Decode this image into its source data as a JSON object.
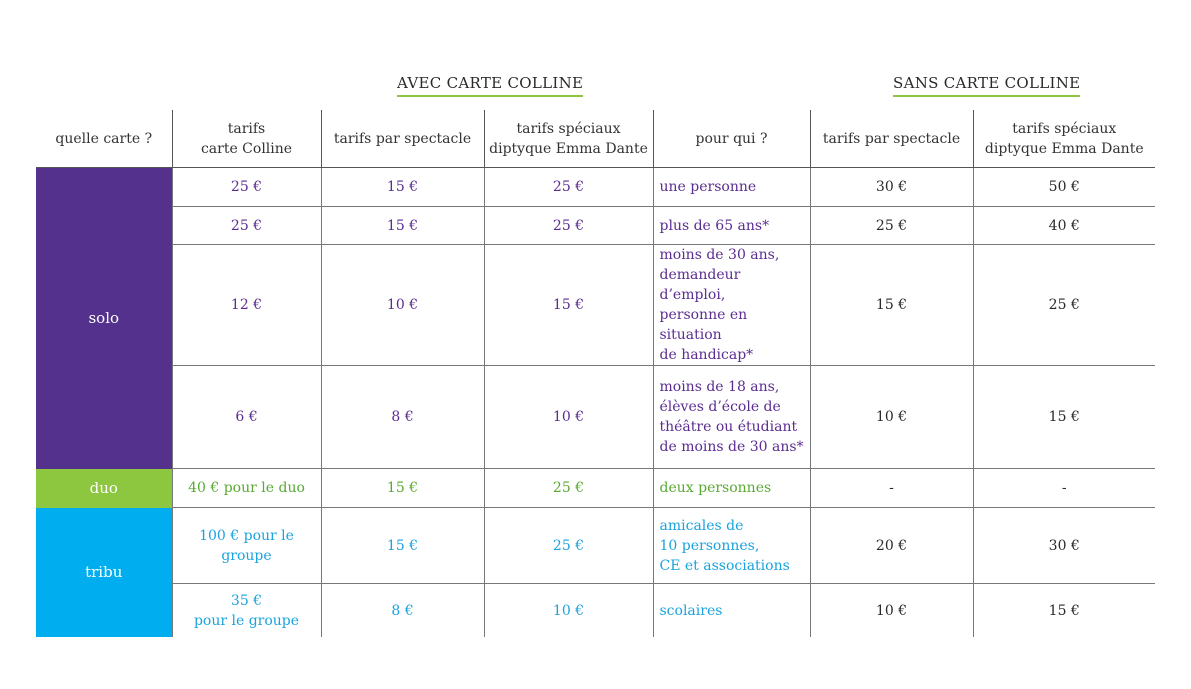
{
  "headers": {
    "avec": "AVEC CARTE COLLINE",
    "sans": "SANS CARTE COLLINE"
  },
  "columns": {
    "c0": "quelle carte ?",
    "c1": "tarifs\ncarte Colline",
    "c2": "tarifs par spectacle",
    "c3": "tarifs spéciaux\ndiptyque Emma Dante",
    "c4": "pour qui ?",
    "c5": "tarifs par spectacle",
    "c6": "tarifs spéciaux\ndiptyque Emma Dante"
  },
  "categories": {
    "solo": "solo",
    "duo": "duo",
    "tribu": "tribu"
  },
  "rows": [
    {
      "carte": "25 €",
      "spectacle": "15 €",
      "diptyque": "25 €",
      "pour_qui": "une personne",
      "sans_spectacle": "30 €",
      "sans_diptyque": "50 €"
    },
    {
      "carte": "25 €",
      "spectacle": "15 €",
      "diptyque": "25 €",
      "pour_qui": "plus de 65 ans*",
      "sans_spectacle": "25 €",
      "sans_diptyque": "40 €"
    },
    {
      "carte": "12 €",
      "spectacle": "10 €",
      "diptyque": "15 €",
      "pour_qui": "moins de 30 ans,\ndemandeur d’emploi,\npersonne en situation\nde handicap*",
      "sans_spectacle": "15 €",
      "sans_diptyque": "25 €"
    },
    {
      "carte": "6 €",
      "spectacle": "8 €",
      "diptyque": "10 €",
      "pour_qui": "moins de 18 ans,\nélèves d’école de\nthéâtre ou étudiant\nde moins de 30 ans*",
      "sans_spectacle": "10 €",
      "sans_diptyque": "15 €"
    },
    {
      "carte": "40 € pour le duo",
      "spectacle": "15 €",
      "diptyque": "25 €",
      "pour_qui": "deux personnes",
      "sans_spectacle": "-",
      "sans_diptyque": "-"
    },
    {
      "carte": "100 € pour le\ngroupe",
      "spectacle": "15 €",
      "diptyque": "25 €",
      "pour_qui": "amicales de\n10 personnes,\nCE et associations",
      "sans_spectacle": "20 €",
      "sans_diptyque": "30 €"
    },
    {
      "carte": "35 €\npour le groupe",
      "spectacle": "8 €",
      "diptyque": "10 €",
      "pour_qui": "scolaires",
      "sans_spectacle": "10 €",
      "sans_diptyque": "15 €"
    }
  ],
  "colors": {
    "solo": "#54318d",
    "duo": "#8dc63f",
    "tribu": "#00aeef",
    "underline": "#8dc63f"
  }
}
